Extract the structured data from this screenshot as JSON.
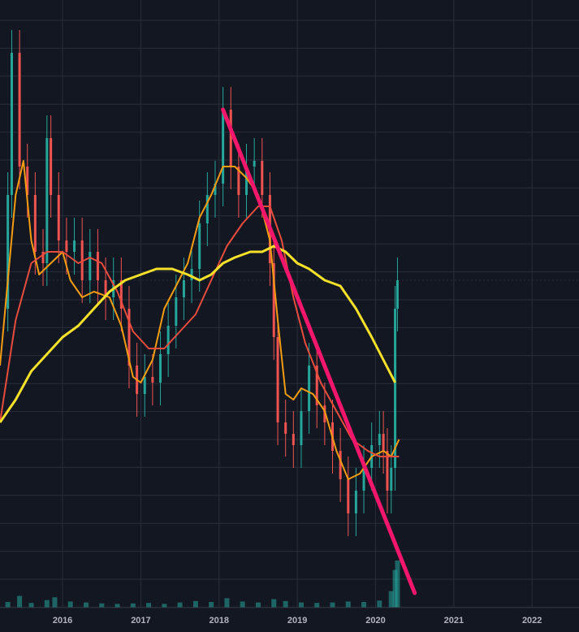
{
  "chart_data": {
    "type": "candlestick",
    "title": "",
    "xlabel": "",
    "ylabel": "",
    "x_tick_labels": [
      "2016",
      "2017",
      "2018",
      "2019",
      "2020",
      "2021",
      "2022"
    ],
    "x_range": [
      2015.2,
      2022.6
    ],
    "y_range": [
      0,
      100
    ],
    "y_scale": "relative",
    "grid": true,
    "legend": "none",
    "last_price_line": 55,
    "series": [
      {
        "kind": "price",
        "color_up": "#26a69a",
        "color_down": "#ef5350",
        "points": [
          [
            2015.2,
            50
          ],
          [
            2015.3,
            70
          ],
          [
            2015.35,
            95
          ],
          [
            2015.45,
            75
          ],
          [
            2015.55,
            70
          ],
          [
            2015.65,
            60
          ],
          [
            2015.75,
            58
          ],
          [
            2015.8,
            80
          ],
          [
            2015.85,
            70
          ],
          [
            2015.95,
            62
          ],
          [
            2016.05,
            60
          ],
          [
            2016.15,
            62
          ],
          [
            2016.25,
            55
          ],
          [
            2016.35,
            60
          ],
          [
            2016.45,
            55
          ],
          [
            2016.55,
            52
          ],
          [
            2016.65,
            55
          ],
          [
            2016.75,
            50
          ],
          [
            2016.85,
            40
          ],
          [
            2016.95,
            35
          ],
          [
            2017.05,
            38
          ],
          [
            2017.15,
            37
          ],
          [
            2017.25,
            42
          ],
          [
            2017.35,
            47
          ],
          [
            2017.45,
            52
          ],
          [
            2017.55,
            55
          ],
          [
            2017.65,
            57
          ],
          [
            2017.75,
            65
          ],
          [
            2017.85,
            70
          ],
          [
            2017.95,
            72
          ],
          [
            2018.05,
            85
          ],
          [
            2018.15,
            75
          ],
          [
            2018.25,
            70
          ],
          [
            2018.35,
            75
          ],
          [
            2018.45,
            76
          ],
          [
            2018.55,
            70
          ],
          [
            2018.65,
            58
          ],
          [
            2018.7,
            45
          ],
          [
            2018.75,
            30
          ],
          [
            2018.85,
            28
          ],
          [
            2018.95,
            26
          ],
          [
            2019.05,
            32
          ],
          [
            2019.15,
            40
          ],
          [
            2019.25,
            33
          ],
          [
            2019.35,
            30
          ],
          [
            2019.45,
            25
          ],
          [
            2019.55,
            20
          ],
          [
            2019.65,
            14
          ],
          [
            2019.75,
            18
          ],
          [
            2019.85,
            22
          ],
          [
            2019.95,
            26
          ],
          [
            2020.05,
            28
          ],
          [
            2020.1,
            25
          ],
          [
            2020.15,
            18
          ],
          [
            2020.2,
            22
          ],
          [
            2020.25,
            50
          ],
          [
            2020.28,
            55
          ]
        ]
      },
      {
        "kind": "moving_average",
        "name": "",
        "color": "#f39c12",
        "points": [
          [
            2015.2,
            40
          ],
          [
            2015.4,
            70
          ],
          [
            2015.5,
            76
          ],
          [
            2015.6,
            62
          ],
          [
            2015.7,
            56
          ],
          [
            2015.85,
            58
          ],
          [
            2016.0,
            60
          ],
          [
            2016.1,
            55
          ],
          [
            2016.25,
            52
          ],
          [
            2016.4,
            53
          ],
          [
            2016.6,
            52
          ],
          [
            2016.75,
            47
          ],
          [
            2016.9,
            38
          ],
          [
            2017.0,
            37
          ],
          [
            2017.15,
            41
          ],
          [
            2017.3,
            50
          ],
          [
            2017.45,
            54
          ],
          [
            2017.6,
            58
          ],
          [
            2017.75,
            66
          ],
          [
            2017.9,
            70
          ],
          [
            2018.05,
            75
          ],
          [
            2018.2,
            75
          ],
          [
            2018.35,
            73
          ],
          [
            2018.5,
            70
          ],
          [
            2018.65,
            62
          ],
          [
            2018.75,
            48
          ],
          [
            2018.85,
            35
          ],
          [
            2018.95,
            34
          ],
          [
            2019.05,
            36
          ],
          [
            2019.2,
            35
          ],
          [
            2019.35,
            32
          ],
          [
            2019.5,
            25
          ],
          [
            2019.65,
            20
          ],
          [
            2019.8,
            21
          ],
          [
            2019.95,
            24
          ],
          [
            2020.1,
            25
          ],
          [
            2020.2,
            24
          ],
          [
            2020.3,
            27
          ]
        ]
      },
      {
        "kind": "moving_average",
        "name": "",
        "color": "#e74c3c",
        "points": [
          [
            2015.2,
            30
          ],
          [
            2015.4,
            48
          ],
          [
            2015.6,
            58
          ],
          [
            2015.8,
            60
          ],
          [
            2016.0,
            60
          ],
          [
            2016.2,
            58
          ],
          [
            2016.35,
            59
          ],
          [
            2016.5,
            58
          ],
          [
            2016.7,
            53
          ],
          [
            2016.9,
            46
          ],
          [
            2017.1,
            43
          ],
          [
            2017.3,
            43
          ],
          [
            2017.5,
            46
          ],
          [
            2017.7,
            49
          ],
          [
            2017.9,
            55
          ],
          [
            2018.1,
            61
          ],
          [
            2018.3,
            65
          ],
          [
            2018.5,
            68
          ],
          [
            2018.65,
            68
          ],
          [
            2018.8,
            62
          ],
          [
            2018.95,
            52
          ],
          [
            2019.1,
            44
          ],
          [
            2019.3,
            37
          ],
          [
            2019.5,
            32
          ],
          [
            2019.7,
            27
          ],
          [
            2019.9,
            25
          ],
          [
            2020.05,
            24
          ],
          [
            2020.2,
            24
          ],
          [
            2020.3,
            24
          ]
        ]
      },
      {
        "kind": "moving_average",
        "name": "",
        "color": "#f5e12a",
        "points": [
          [
            2015.2,
            30
          ],
          [
            2015.4,
            34
          ],
          [
            2015.6,
            39
          ],
          [
            2015.8,
            42
          ],
          [
            2016.0,
            45
          ],
          [
            2016.2,
            47
          ],
          [
            2016.4,
            50
          ],
          [
            2016.6,
            53
          ],
          [
            2016.8,
            55
          ],
          [
            2017.0,
            56
          ],
          [
            2017.2,
            57
          ],
          [
            2017.4,
            57
          ],
          [
            2017.6,
            56
          ],
          [
            2017.75,
            55
          ],
          [
            2017.9,
            56
          ],
          [
            2018.05,
            58
          ],
          [
            2018.2,
            59
          ],
          [
            2018.4,
            60
          ],
          [
            2018.55,
            60
          ],
          [
            2018.7,
            61
          ],
          [
            2018.85,
            60
          ],
          [
            2019.0,
            58
          ],
          [
            2019.15,
            57
          ],
          [
            2019.35,
            55
          ],
          [
            2019.55,
            54
          ],
          [
            2019.75,
            50
          ],
          [
            2019.95,
            45
          ],
          [
            2020.1,
            41
          ],
          [
            2020.25,
            37
          ]
        ]
      },
      {
        "kind": "trendline",
        "name": "",
        "color": "#f2176b",
        "points": [
          [
            2018.05,
            85
          ],
          [
            2020.5,
            0
          ]
        ]
      }
    ],
    "volume": {
      "color": "#26a69a",
      "points": [
        [
          2015.3,
          1.2
        ],
        [
          2015.45,
          2.5
        ],
        [
          2015.6,
          1.0
        ],
        [
          2015.8,
          1.6
        ],
        [
          2015.9,
          2.2
        ],
        [
          2016.1,
          1.3
        ],
        [
          2016.3,
          1.1
        ],
        [
          2016.5,
          0.9
        ],
        [
          2016.7,
          0.8
        ],
        [
          2016.9,
          0.9
        ],
        [
          2017.1,
          1.0
        ],
        [
          2017.3,
          0.8
        ],
        [
          2017.5,
          1.1
        ],
        [
          2017.7,
          1.4
        ],
        [
          2017.9,
          1.2
        ],
        [
          2018.1,
          2.0
        ],
        [
          2018.3,
          1.3
        ],
        [
          2018.5,
          1.1
        ],
        [
          2018.7,
          1.8
        ],
        [
          2018.85,
          1.4
        ],
        [
          2019.05,
          1.1
        ],
        [
          2019.25,
          1.0
        ],
        [
          2019.45,
          1.1
        ],
        [
          2019.65,
          1.3
        ],
        [
          2019.85,
          1.2
        ],
        [
          2020.05,
          1.5
        ],
        [
          2020.2,
          3.5
        ],
        [
          2020.25,
          8.0
        ],
        [
          2020.28,
          10.0
        ]
      ]
    }
  }
}
